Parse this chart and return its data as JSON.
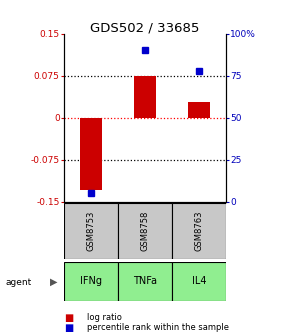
{
  "title": "GDS502 / 33685",
  "categories": [
    "IFNg",
    "TNFa",
    "IL4"
  ],
  "sample_labels": [
    "GSM8753",
    "GSM8758",
    "GSM8763"
  ],
  "log_ratios": [
    -0.13,
    0.075,
    0.027
  ],
  "percentile_ranks": [
    5.0,
    90.0,
    78.0
  ],
  "ylim_left": [
    -0.15,
    0.15
  ],
  "ylim_right": [
    0,
    100
  ],
  "left_ticks": [
    -0.15,
    -0.075,
    0,
    0.075,
    0.15
  ],
  "right_ticks": [
    0,
    25,
    50,
    75,
    100
  ],
  "right_tick_labels": [
    "0",
    "25",
    "50",
    "75",
    "100%"
  ],
  "black_dotted_lines": [
    -0.075,
    0.075
  ],
  "red_dashed_line": 0.0,
  "bar_color": "#cc0000",
  "dot_color": "#0000cc",
  "sample_bg": "#c8c8c8",
  "agent_bg": "#90ee90",
  "left_tick_color": "#cc0000",
  "right_tick_color": "#0000bb",
  "bar_width": 0.4,
  "title_fontsize": 9.5
}
